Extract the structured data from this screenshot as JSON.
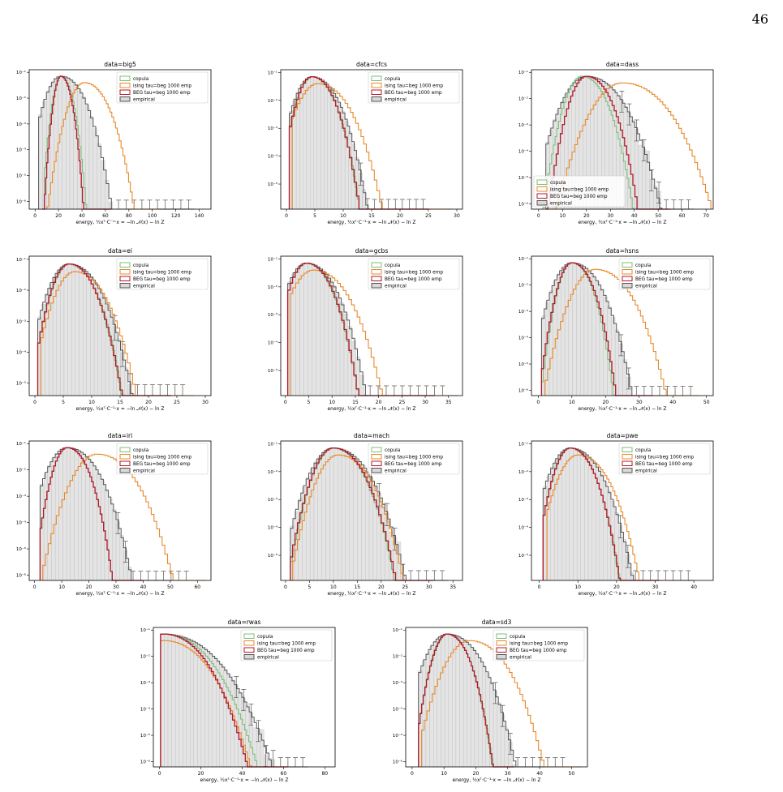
{
  "page_number": "46",
  "colors": {
    "copula": "#7fbf7b",
    "ising": "#e8892b",
    "beg": "#b2182b",
    "empirical": "#555555",
    "empirical_fill": "#d9d9d9"
  },
  "legend_labels": [
    "copula",
    "ising tau=beg 1000  emp",
    "BEG tau=beg 1000  emp",
    "empirical"
  ],
  "xlabel": "energy, ½xᵀ·C⁻¹·x = −ln 𝒩(x) − ln Z",
  "y_tick_labels": [
    "10⁻⁶",
    "10⁻⁵",
    "10⁻⁴",
    "10⁻³",
    "10⁻²",
    "10⁻¹"
  ],
  "chart_data": [
    {
      "type": "histogram",
      "title": "data=big5",
      "xlim": [
        -5,
        150
      ],
      "xticks": [
        0,
        20,
        40,
        60,
        80,
        100,
        120,
        140
      ],
      "yscale": "log",
      "ylim": [
        -6.3,
        -0.9
      ],
      "peaks": {
        "emp": 22,
        "cop": 22,
        "ising": 42,
        "beg": 22
      },
      "spreads": {
        "emp": 18,
        "cop": 9,
        "ising": 18,
        "beg": 8
      },
      "ranges": {
        "emp": [
          3,
          136
        ],
        "cop": [
          8,
          80
        ],
        "ising": [
          10,
          105
        ],
        "beg": [
          6,
          65
        ]
      },
      "legend": "top-right"
    },
    {
      "type": "histogram",
      "title": "data=cfcs",
      "xlim": [
        -1,
        31
      ],
      "xticks": [
        0,
        5,
        10,
        15,
        20,
        25,
        30
      ],
      "yscale": "log",
      "ylim": [
        -5.9,
        -0.9
      ],
      "peaks": {
        "emp": 4.5,
        "cop": 4.5,
        "ising": 5.5,
        "beg": 4.5
      },
      "spreads": {
        "emp": 4.2,
        "cop": 3.6,
        "ising": 5,
        "beg": 3.6
      },
      "ranges": {
        "emp": [
          0.5,
          25
        ],
        "cop": [
          0.5,
          21
        ],
        "ising": [
          1,
          29
        ],
        "beg": [
          0.5,
          25
        ]
      },
      "legend": "top-right"
    },
    {
      "type": "histogram",
      "title": "data=dass",
      "xlim": [
        -3,
        73
      ],
      "xticks": [
        0,
        10,
        20,
        30,
        40,
        50,
        60,
        70
      ],
      "yscale": "log",
      "ylim": [
        -6.2,
        -0.9
      ],
      "peaks": {
        "emp": 20,
        "cop": 18,
        "ising": 35,
        "beg": 20
      },
      "spreads": {
        "emp": 13,
        "cop": 9,
        "ising": 16,
        "beg": 9
      },
      "ranges": {
        "emp": [
          3,
          65
        ],
        "cop": [
          1,
          45
        ],
        "ising": [
          5,
          72
        ],
        "beg": [
          3,
          55
        ]
      },
      "legend": "bottom-left"
    },
    {
      "type": "histogram",
      "title": "data=ei",
      "xlim": [
        -1,
        31
      ],
      "xticks": [
        0,
        5,
        10,
        15,
        20,
        25,
        30
      ],
      "yscale": "log",
      "ylim": [
        -5.4,
        -0.9
      ],
      "peaks": {
        "emp": 6,
        "cop": 6,
        "ising": 7,
        "beg": 6
      },
      "spreads": {
        "emp": 5,
        "cop": 4.2,
        "ising": 5,
        "beg": 4.2
      },
      "ranges": {
        "emp": [
          0.5,
          27
        ],
        "cop": [
          0.5,
          23
        ],
        "ising": [
          1,
          28
        ],
        "beg": [
          0.5,
          24
        ]
      },
      "legend": "top-right"
    },
    {
      "type": "histogram",
      "title": "data=gcbs",
      "xlim": [
        -1,
        38
      ],
      "xticks": [
        0,
        5,
        10,
        15,
        20,
        25,
        30,
        35
      ],
      "yscale": "log",
      "ylim": [
        -5.9,
        -0.9
      ],
      "peaks": {
        "emp": 4.5,
        "cop": 4.5,
        "ising": 6,
        "beg": 4.5
      },
      "spreads": {
        "emp": 5.5,
        "cop": 4.8,
        "ising": 6.5,
        "beg": 4.8
      },
      "ranges": {
        "emp": [
          0.5,
          35
        ],
        "cop": [
          0.5,
          31
        ],
        "ising": [
          1,
          37
        ],
        "beg": [
          0.5,
          32
        ]
      },
      "legend": "top-right"
    },
    {
      "type": "histogram",
      "title": "data=hsns",
      "xlim": [
        -2,
        52
      ],
      "xticks": [
        0,
        10,
        20,
        30,
        40,
        50
      ],
      "yscale": "log",
      "ylim": [
        -6.2,
        -0.9
      ],
      "peaks": {
        "emp": 10,
        "cop": 10,
        "ising": 17,
        "beg": 10
      },
      "spreads": {
        "emp": 7.5,
        "cop": 5.2,
        "ising": 9,
        "beg": 5.5
      },
      "ranges": {
        "emp": [
          1,
          47
        ],
        "cop": [
          1,
          32
        ],
        "ising": [
          2,
          48
        ],
        "beg": [
          1,
          34
        ]
      },
      "legend": "top-right"
    },
    {
      "type": "histogram",
      "title": "data=iri",
      "xlim": [
        -2,
        65
      ],
      "xticks": [
        0,
        10,
        20,
        30,
        40,
        50,
        60
      ],
      "yscale": "log",
      "ylim": [
        -6.2,
        -0.9
      ],
      "peaks": {
        "emp": 12,
        "cop": 12,
        "ising": 23,
        "beg": 12
      },
      "spreads": {
        "emp": 10,
        "cop": 7,
        "ising": 12,
        "beg": 7
      },
      "ranges": {
        "emp": [
          2,
          58
        ],
        "cop": [
          2,
          40
        ],
        "ising": [
          3,
          63
        ],
        "beg": [
          2,
          40
        ]
      },
      "legend": "top-right"
    },
    {
      "type": "histogram",
      "title": "data=mach",
      "xlim": [
        -1,
        37
      ],
      "xticks": [
        0,
        5,
        10,
        15,
        20,
        25,
        30,
        35
      ],
      "yscale": "log",
      "ylim": [
        -5.9,
        -0.9
      ],
      "peaks": {
        "emp": 10,
        "cop": 10,
        "ising": 11,
        "beg": 10
      },
      "spreads": {
        "emp": 6.5,
        "cop": 5.5,
        "ising": 6,
        "beg": 5.6
      },
      "ranges": {
        "emp": [
          1,
          34
        ],
        "cop": [
          1,
          28
        ],
        "ising": [
          1.5,
          31
        ],
        "beg": [
          1,
          31
        ]
      },
      "legend": "top-right"
    },
    {
      "type": "histogram",
      "title": "data=pwe",
      "xlim": [
        -2,
        45
      ],
      "xticks": [
        0,
        10,
        20,
        30,
        40
      ],
      "yscale": "log",
      "ylim": [
        -5.9,
        -0.9
      ],
      "peaks": {
        "emp": 8,
        "cop": 8,
        "ising": 10,
        "beg": 8
      },
      "spreads": {
        "emp": 7,
        "cop": 5.5,
        "ising": 7,
        "beg": 5.5
      },
      "ranges": {
        "emp": [
          1,
          40
        ],
        "cop": [
          1,
          30
        ],
        "ising": [
          2,
          33
        ],
        "beg": [
          1,
          31
        ]
      },
      "legend": "top-right"
    },
    {
      "type": "histogram",
      "title": "data=rwas",
      "xlim": [
        -3,
        85
      ],
      "xticks": [
        0,
        20,
        40,
        60,
        80
      ],
      "yscale": "log",
      "ylim": [
        -6.2,
        -0.9
      ],
      "peaks": {
        "emp": 2,
        "cop": 2,
        "ising": 2,
        "beg": 2
      },
      "spreads": {
        "emp": 22,
        "cop": 19,
        "ising": 18,
        "beg": 17
      },
      "ranges": {
        "emp": [
          0.5,
          72
        ],
        "cop": [
          0.5,
          60
        ],
        "ising": [
          0.5,
          62
        ],
        "beg": [
          0.5,
          62
        ]
      },
      "legend": "top-right"
    },
    {
      "type": "histogram",
      "title": "data=sd3",
      "xlim": [
        -2,
        55
      ],
      "xticks": [
        0,
        10,
        20,
        30,
        40,
        50
      ],
      "yscale": "log",
      "ylim": [
        -6.2,
        -0.9
      ],
      "peaks": {
        "emp": 11,
        "cop": 11,
        "ising": 18,
        "beg": 11
      },
      "spreads": {
        "emp": 9,
        "cop": 6,
        "ising": 10,
        "beg": 6
      },
      "ranges": {
        "emp": [
          2,
          49
        ],
        "cop": [
          2,
          33
        ],
        "ising": [
          3,
          53
        ],
        "beg": [
          2,
          32
        ]
      },
      "legend": "top-right"
    }
  ]
}
